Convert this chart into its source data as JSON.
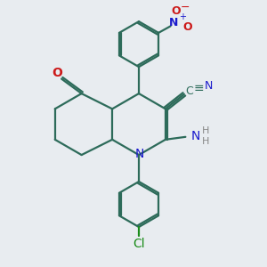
{
  "bg_color": "#e8ecf0",
  "bond_color": "#2d6b5a",
  "N_color": "#1a1acc",
  "O_color": "#cc1a1a",
  "Cl_color": "#1a8c1a",
  "H_color": "#888888",
  "linewidth": 1.6,
  "figsize": [
    3.0,
    3.0
  ],
  "dpi": 100,
  "xlim": [
    0,
    10
  ],
  "ylim": [
    0,
    10
  ]
}
